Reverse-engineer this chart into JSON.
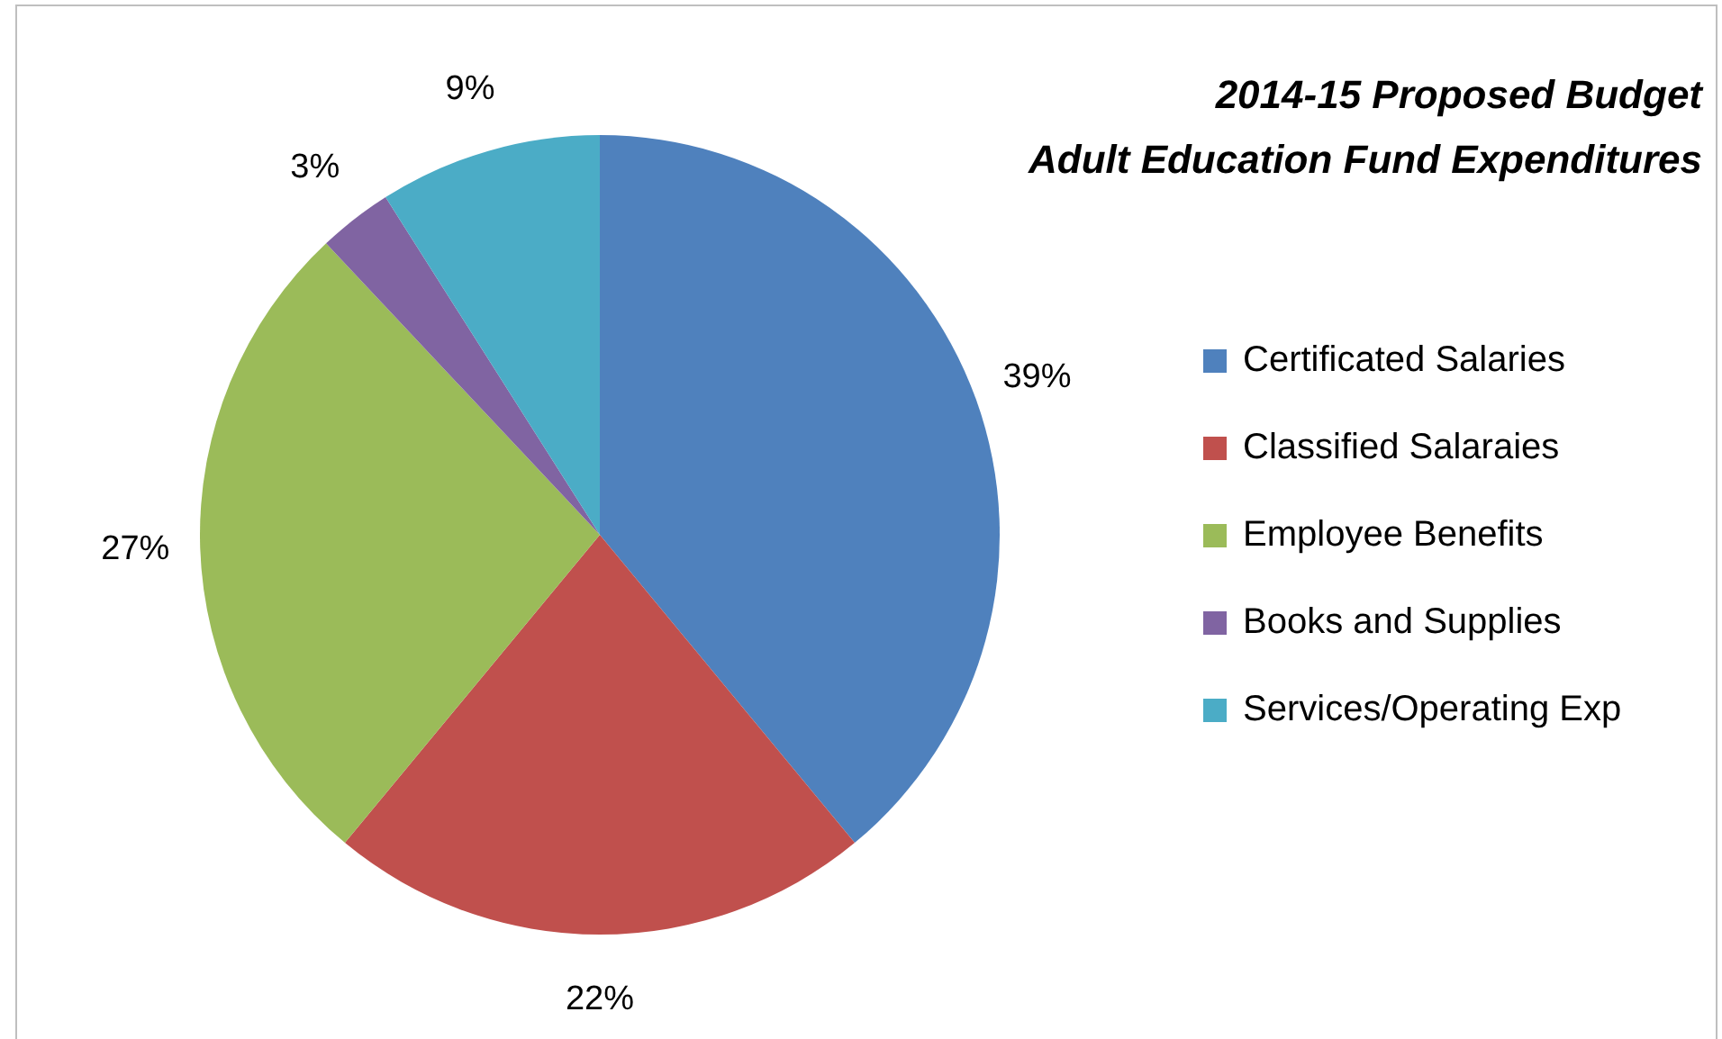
{
  "chart_data": {
    "type": "pie",
    "title": "2014-15 Proposed Budget\nAdult Education Fund Expenditures",
    "categories": [
      "Certificated Salaries",
      "Classified Salaraies",
      "Employee Benefits",
      "Books and Supplies",
      "Services/Operating Exp"
    ],
    "values": [
      39,
      22,
      27,
      3,
      9
    ],
    "colors": [
      "#4f81bd",
      "#c0504d",
      "#9bbb59",
      "#8064a2",
      "#4bacc6"
    ],
    "value_labels": [
      "39%",
      "22%",
      "27%",
      "3%",
      "9%"
    ],
    "legend": "right"
  }
}
